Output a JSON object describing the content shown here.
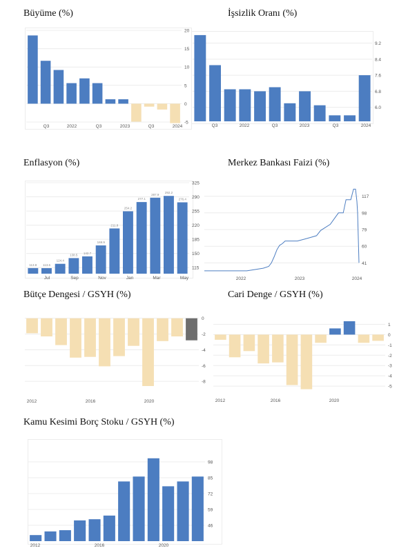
{
  "colors": {
    "blue": "#4c7dc1",
    "tan": "#f5dfb3",
    "dark": "#6e6e6e",
    "grid": "#ececec",
    "tick": "#555555"
  },
  "chart_data": [
    {
      "type": "bar",
      "title": "Büyüme (%)",
      "ylim": [
        -5,
        20
      ],
      "grid": true,
      "yticks": [
        "20",
        "15",
        "10",
        "5",
        "0",
        "-5"
      ],
      "ytick_values": [
        20,
        15,
        10,
        5,
        0,
        -5
      ],
      "xticks": [
        "Q3",
        "2022",
        "Q3",
        "2023",
        "Q3",
        "2024"
      ],
      "values": [
        18.6,
        11.7,
        9.2,
        5.6,
        6.9,
        5.6,
        1.2,
        1.2,
        -4.9,
        -0.8,
        -1.6,
        -5.3
      ]
    },
    {
      "type": "bar",
      "title": "İşsizlik Oranı (%)",
      "ylim": [
        5.3,
        9.7
      ],
      "grid": true,
      "yticks": [
        "9.2",
        "8.4",
        "7.6",
        "6.8",
        "6.0"
      ],
      "ytick_values": [
        9.2,
        8.4,
        7.6,
        6.8,
        6.0
      ],
      "xticks": [
        "Q3",
        "2022",
        "Q3",
        "2023",
        "Q3",
        "2024"
      ],
      "values": [
        9.6,
        8.1,
        6.9,
        6.9,
        6.8,
        7.0,
        6.2,
        6.8,
        6.1,
        5.6,
        5.6,
        7.6
      ]
    },
    {
      "type": "bar",
      "title": "Enflasyon (%)",
      "ylim": [
        100,
        325
      ],
      "grid": true,
      "yticks": [
        "325",
        "290",
        "255",
        "220",
        "185",
        "150",
        "115"
      ],
      "ytick_values": [
        325,
        290,
        255,
        220,
        185,
        150,
        115
      ],
      "xticks": [
        "Jul",
        "Sep",
        "Nov",
        "Jan",
        "Mar",
        "May"
      ],
      "values": [
        113.8,
        113.6,
        124.4,
        138.5,
        142.7,
        169.9,
        211.8,
        254.2,
        277.1,
        287.9,
        292.2,
        276.4
      ],
      "labels": [
        "113.8",
        "113.6",
        "124.4",
        "138.5",
        "142.7",
        "169.9",
        "211.8",
        "254.2",
        "277.1",
        "287.9",
        "292.2",
        "276.4"
      ]
    },
    {
      "type": "line",
      "title": "Merkez Bankası Faizi (%)",
      "ylim": [
        28,
        130
      ],
      "grid": true,
      "yticks": [
        "117",
        "98",
        "79",
        "60",
        "41"
      ],
      "ytick_values": [
        117,
        98,
        79,
        60,
        41
      ],
      "xticks": [
        "2022",
        "2023",
        "2024"
      ],
      "x": [
        0,
        62,
        70,
        78,
        86,
        94,
        98,
        102,
        106,
        110,
        114,
        118,
        126,
        136,
        146,
        155,
        164,
        170,
        184,
        196,
        203,
        207,
        214,
        218,
        221,
        223,
        224,
        226
      ],
      "y": [
        32,
        32,
        33,
        34,
        35,
        37,
        41,
        48,
        56,
        61,
        63,
        66,
        66,
        66,
        68,
        70,
        72,
        78,
        85,
        98,
        98,
        113,
        113,
        125,
        125,
        111,
        98,
        41
      ]
    },
    {
      "type": "bar",
      "title": "Bütçe Dengesi / GSYH (%)",
      "ylim": [
        -10,
        0.5
      ],
      "grid": true,
      "yticks": [
        "0",
        "-2",
        "-4",
        "-6",
        "-8"
      ],
      "ytick_values": [
        0,
        -2,
        -4,
        -6,
        -8
      ],
      "xticks": [
        "2012",
        "2016",
        "2020"
      ],
      "values": [
        -1.9,
        -2.3,
        -3.4,
        -5.0,
        -4.9,
        -6.1,
        -4.8,
        -3.5,
        -8.6,
        -2.9,
        -2.3,
        -2.8
      ]
    },
    {
      "type": "bar",
      "title": "Cari Denge / GSYH (%)",
      "ylim": [
        -6,
        1.9
      ],
      "grid": true,
      "yticks": [
        "1",
        "0",
        "-1",
        "-2",
        "-3",
        "-4",
        "-5"
      ],
      "ytick_values": [
        1,
        0,
        -1,
        -2,
        -3,
        -4,
        -5
      ],
      "xticks": [
        "2012",
        "2016",
        "2020"
      ],
      "values": [
        -0.5,
        -2.2,
        -1.6,
        -2.8,
        -2.7,
        -4.9,
        -5.3,
        -0.8,
        0.6,
        1.3,
        -0.8,
        -0.6
      ]
    },
    {
      "type": "bar",
      "title": "Kamu Kesimi Borç Stoku / GSYH (%)",
      "ylim": [
        33,
        115
      ],
      "grid": true,
      "yticks": [
        "98",
        "85",
        "72",
        "59",
        "46"
      ],
      "ytick_values": [
        98,
        85,
        72,
        59,
        46
      ],
      "xticks": [
        "2012",
        "2016",
        "2020"
      ],
      "values": [
        38,
        41,
        42,
        50,
        51,
        54,
        82,
        86,
        101,
        78,
        82,
        86
      ]
    }
  ]
}
